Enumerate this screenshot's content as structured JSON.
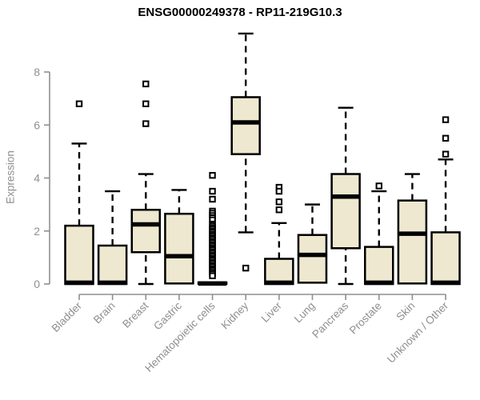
{
  "chart_data": {
    "type": "boxplot",
    "title": "ENSG00000249378 - RP11-219G10.3",
    "xlabel": "",
    "ylabel": "Expression",
    "ylim": [
      0,
      9.6
    ],
    "yticks": [
      0,
      2,
      4,
      6,
      8
    ],
    "grid": false,
    "legend": "none",
    "axis_color": "#8f8f8f",
    "tick_label_color": "#8f8f8f",
    "title_color": "#000000",
    "box_fill": "#EDE8CF",
    "box_stroke": "#000000",
    "median_color": "#000000",
    "outlier_fill": "#FFFFFF",
    "categories": [
      "Bladder",
      "Brain",
      "Breast",
      "Gastric",
      "Hematopoietic cells",
      "Kidney",
      "Liver",
      "Lung",
      "Pancreas",
      "Prostate",
      "Skin",
      "Unknown / Other"
    ],
    "series": [
      {
        "name": "Bladder",
        "whisker_low": 0,
        "q1": 0,
        "median": 0.05,
        "q3": 2.2,
        "whisker_high": 5.3,
        "outliers": [
          6.8
        ]
      },
      {
        "name": "Brain",
        "whisker_low": 0,
        "q1": 0,
        "median": 0.05,
        "q3": 1.45,
        "whisker_high": 3.5,
        "outliers": []
      },
      {
        "name": "Breast",
        "whisker_low": 0,
        "q1": 1.2,
        "median": 2.25,
        "q3": 2.8,
        "whisker_high": 4.15,
        "outliers": [
          7.55,
          6.8,
          6.05
        ]
      },
      {
        "name": "Gastric",
        "whisker_low": 0,
        "q1": 0.02,
        "median": 1.05,
        "q3": 2.65,
        "whisker_high": 3.55,
        "outliers": []
      },
      {
        "name": "Hematopoietic cells",
        "whisker_low": 0,
        "q1": 0,
        "median": 0.02,
        "q3": 0.06,
        "whisker_high": 0.06,
        "outliers": [
          4.1,
          3.5,
          3.2,
          2.75,
          2.67,
          2.58,
          2.5,
          2.42,
          2.26,
          2.2,
          2.13,
          2.07,
          2.0,
          1.94,
          1.87,
          1.81,
          1.74,
          1.68,
          1.61,
          1.55,
          1.48,
          1.42,
          1.35,
          1.29,
          1.22,
          1.16,
          1.09,
          1.03,
          0.96,
          0.9,
          0.83,
          0.77,
          0.7,
          0.64,
          0.57,
          0.51,
          0.44,
          0.38,
          0.31
        ]
      },
      {
        "name": "Kidney",
        "whisker_low": 1.95,
        "q1": 4.9,
        "median": 6.1,
        "q3": 7.05,
        "whisker_high": 9.45,
        "outliers": [
          0.6
        ]
      },
      {
        "name": "Liver",
        "whisker_low": 0,
        "q1": 0,
        "median": 0.05,
        "q3": 0.95,
        "whisker_high": 2.3,
        "outliers": [
          3.65,
          3.5,
          3.1,
          2.8
        ]
      },
      {
        "name": "Lung",
        "whisker_low": 0,
        "q1": 0.05,
        "median": 1.1,
        "q3": 1.85,
        "whisker_high": 3.0,
        "outliers": []
      },
      {
        "name": "Pancreas",
        "whisker_low": 0,
        "q1": 1.35,
        "median": 3.3,
        "q3": 4.15,
        "whisker_high": 6.65,
        "outliers": []
      },
      {
        "name": "Prostate",
        "whisker_low": 0,
        "q1": 0,
        "median": 0.05,
        "q3": 1.4,
        "whisker_high": 3.5,
        "outliers": [
          3.7
        ]
      },
      {
        "name": "Skin",
        "whisker_low": 0,
        "q1": 0.02,
        "median": 1.9,
        "q3": 3.15,
        "whisker_high": 4.15,
        "outliers": []
      },
      {
        "name": "Unknown / Other",
        "whisker_low": 0,
        "q1": 0,
        "median": 0.05,
        "q3": 1.95,
        "whisker_high": 4.7,
        "outliers": [
          6.2,
          5.5,
          4.9
        ]
      }
    ]
  }
}
